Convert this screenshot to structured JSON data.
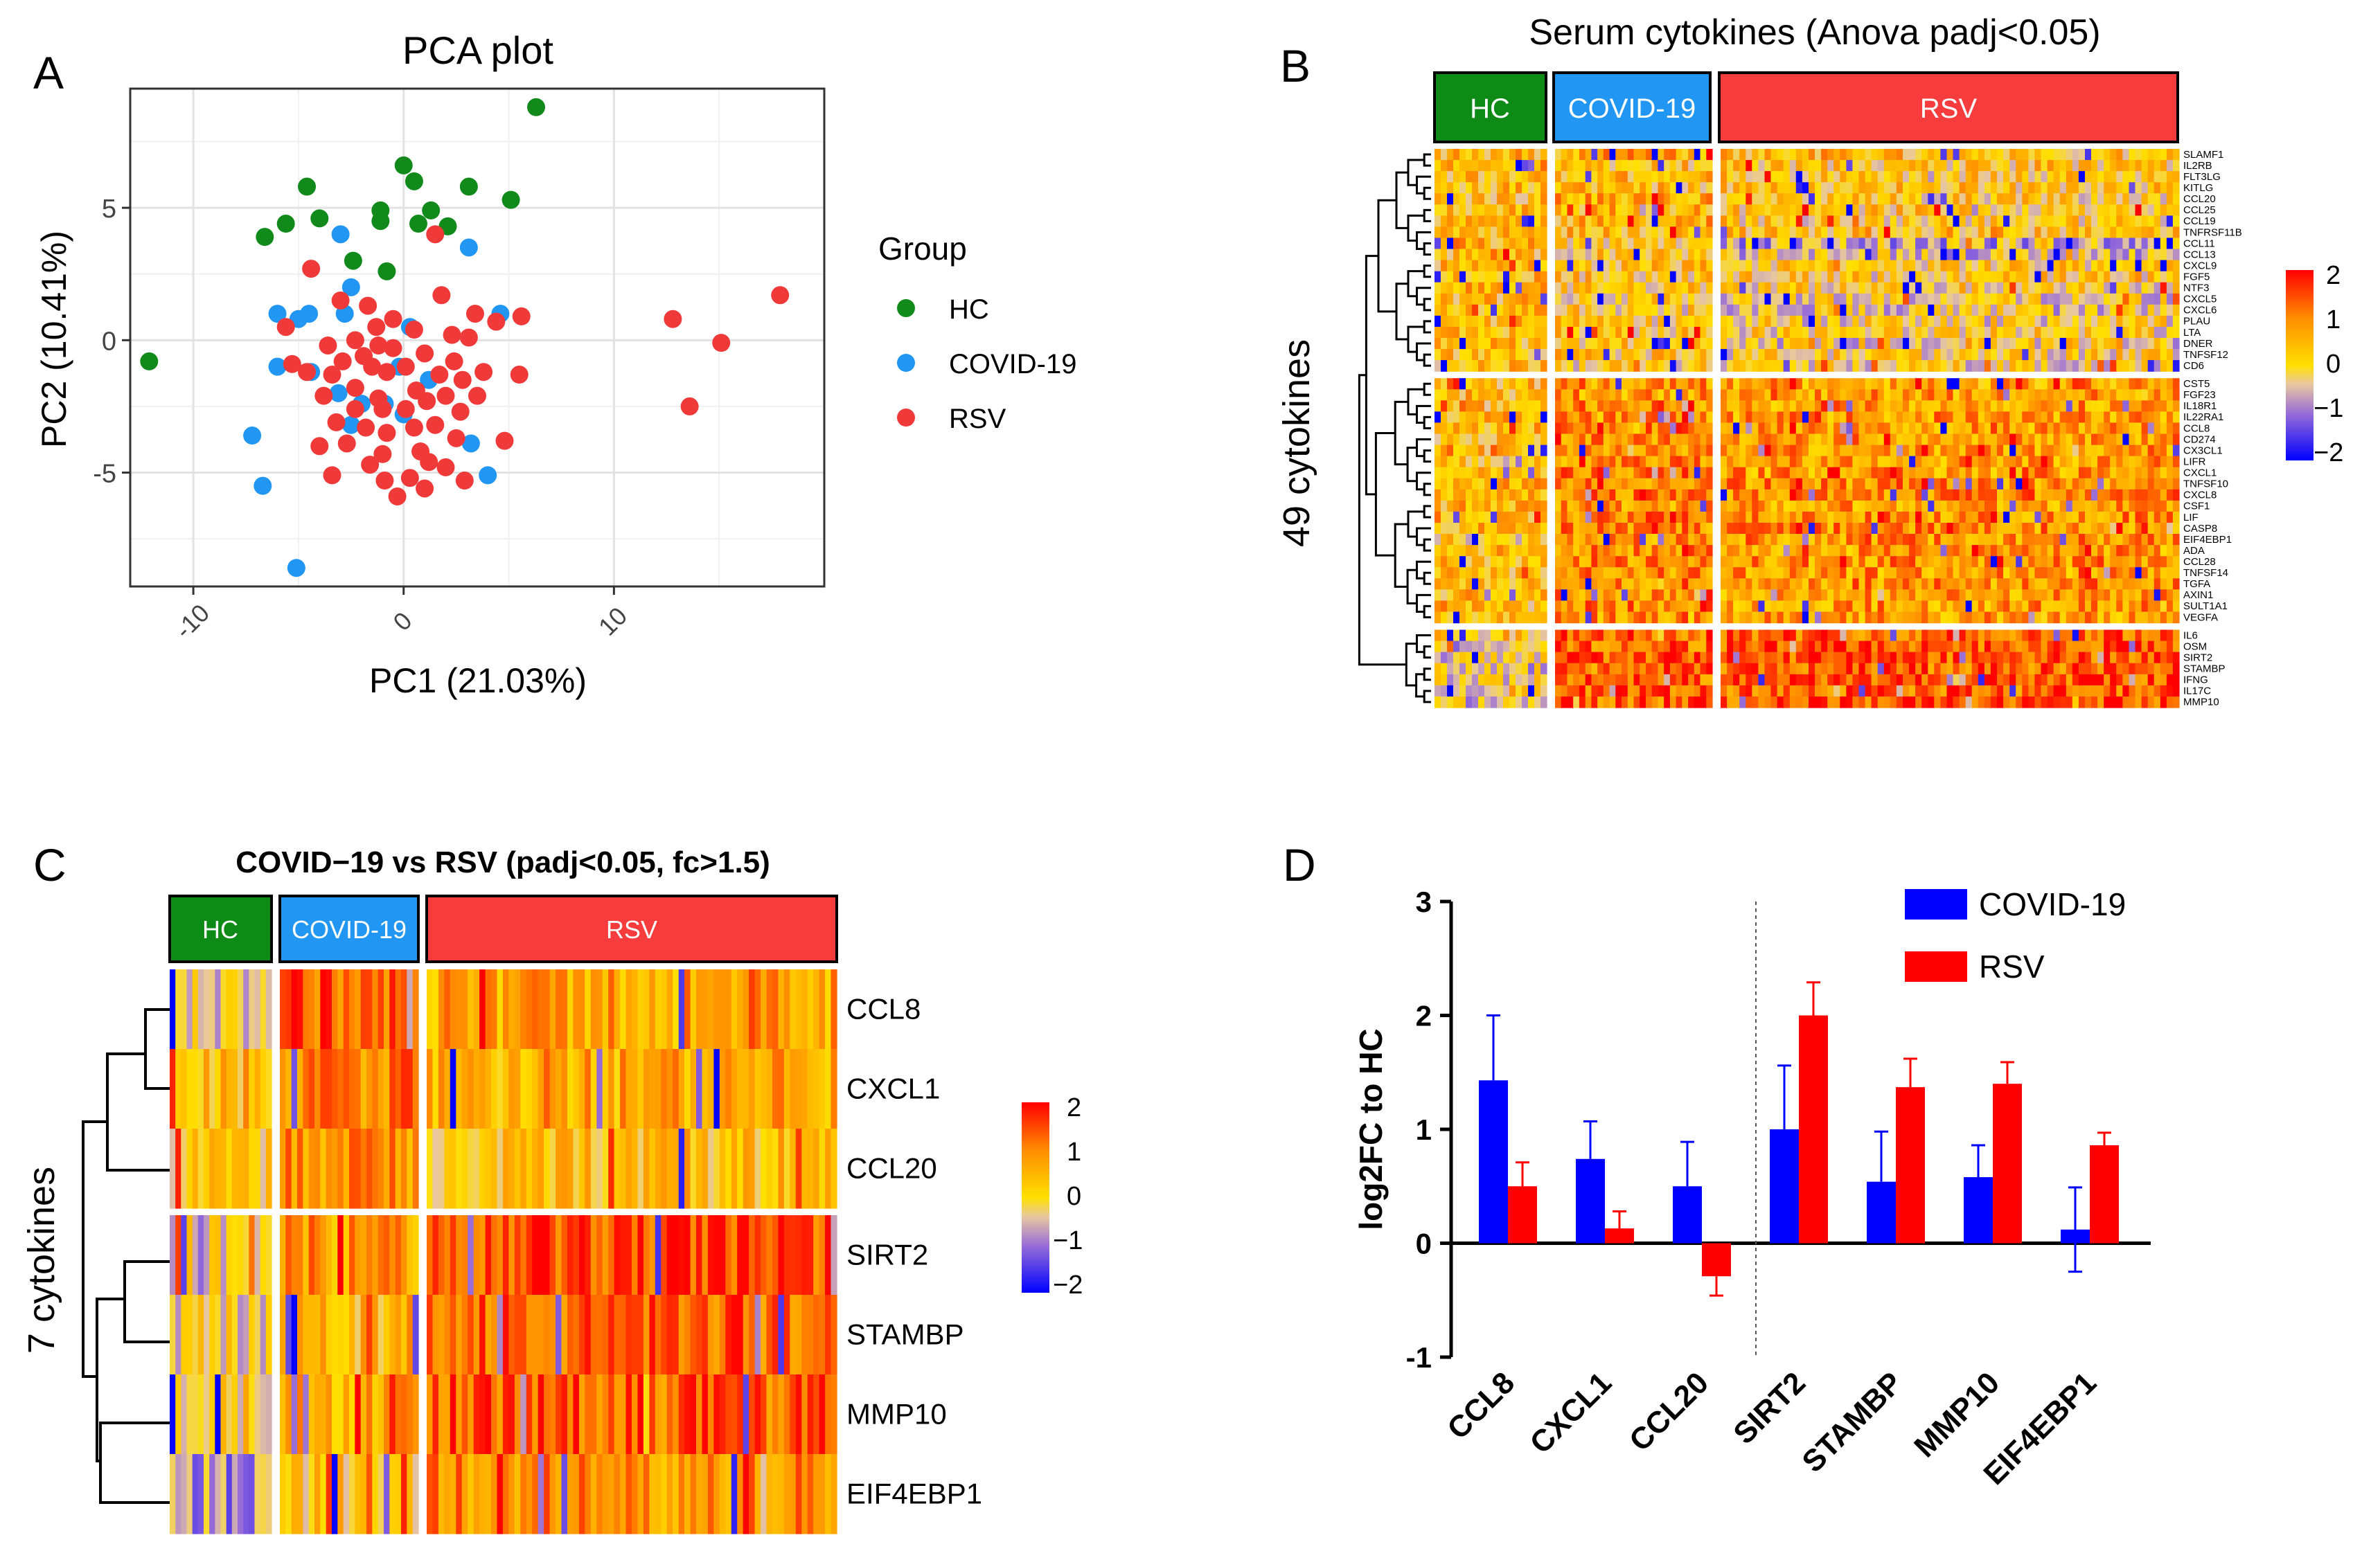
{
  "panels": {
    "A": {
      "letter": "A",
      "title": "PCA plot",
      "xlabel": "PC1 (21.03%)",
      "ylabel": "PC2 (10.41%)",
      "legend_title": "Group",
      "groups": [
        {
          "name": "HC",
          "color": "#118a1b"
        },
        {
          "name": "COVID-19",
          "color": "#2196f3"
        },
        {
          "name": "RSV",
          "color": "#f03a3a"
        }
      ]
    },
    "B": {
      "letter": "B",
      "title": "Serum cytokines (Anova padj<0.05)",
      "side_label": "49 cytokines",
      "group_bars": [
        {
          "label": "HC",
          "color": "#0e8a17"
        },
        {
          "label": "COVID-19",
          "color": "#2196f3"
        },
        {
          "label": "RSV",
          "color": "#f63c3c"
        }
      ],
      "row_labels": [
        "SLAMF1",
        "IL2RB",
        "FLT3LG",
        "KITLG",
        "CCL20",
        "CCL25",
        "CCL19",
        "TNFRSF11B",
        "CCL11",
        "CCL13",
        "CXCL9",
        "FGF5",
        "NTF3",
        "CXCL5",
        "CXCL6",
        "PLAU",
        "LTA",
        "DNER",
        "TNFSF12",
        "CD6",
        "CST5",
        "FGF23",
        "IL18R1",
        "IL22RA1",
        "CCL8",
        "CD274",
        "CX3CL1",
        "LIFR",
        "CXCL1",
        "TNFSF10",
        "CXCL8",
        "CSF1",
        "LIF",
        "CASP8",
        "EIF4EBP1",
        "ADA",
        "CCL28",
        "TNFSF14",
        "TGFA",
        "AXIN1",
        "SULT1A1",
        "VEGFA",
        "IL6",
        "OSM",
        "SIRT2",
        "STAMBP",
        "IFNG",
        "IL17C",
        "MMP10"
      ],
      "colorbar_ticks": [
        "2",
        "1",
        "0",
        "−1",
        "−2"
      ]
    },
    "C": {
      "letter": "C",
      "title": "COVID−19 vs RSV (padj<0.05, fc>1.5)",
      "side_label": "7 cytokines",
      "group_bars": [
        {
          "label": "HC",
          "color": "#0e8a17"
        },
        {
          "label": "COVID-19",
          "color": "#2196f3"
        },
        {
          "label": "RSV",
          "color": "#f63c3c"
        }
      ],
      "row_labels": [
        "CCL8",
        "CXCL1",
        "CCL20",
        "SIRT2",
        "STAMBP",
        "MMP10",
        "EIF4EBP1"
      ],
      "colorbar_ticks": [
        "2",
        "1",
        "0",
        "−1",
        "−2"
      ]
    },
    "D": {
      "letter": "D"
    }
  },
  "chart_data": [
    {
      "panel": "A",
      "type": "scatter",
      "title": "PCA plot",
      "xlabel": "PC1 (21.03%)",
      "ylabel": "PC2 (10.41%)",
      "xlim": [
        -13,
        20
      ],
      "ylim": [
        -9.3,
        9.5
      ],
      "xticks": [
        -10,
        0,
        10
      ],
      "yticks": [
        -5,
        0,
        5
      ],
      "grid": true,
      "legend": "right",
      "series": [
        {
          "name": "HC",
          "color": "#118a1b",
          "points": [
            [
              6.3,
              8.8
            ],
            [
              0,
              6.6
            ],
            [
              0.5,
              6
            ],
            [
              -4.6,
              5.8
            ],
            [
              3.1,
              5.8
            ],
            [
              5.1,
              5.3
            ],
            [
              -1.1,
              4.9
            ],
            [
              1.3,
              4.9
            ],
            [
              -4,
              4.6
            ],
            [
              -5.6,
              4.4
            ],
            [
              -1.1,
              4.5
            ],
            [
              0.7,
              4.4
            ],
            [
              2.1,
              4.3
            ],
            [
              -6.6,
              3.9
            ],
            [
              -0.8,
              2.6
            ],
            [
              -2.4,
              3
            ],
            [
              -12.1,
              -0.8
            ]
          ]
        },
        {
          "name": "COVID-19",
          "color": "#2196f3",
          "points": [
            [
              -3,
              4
            ],
            [
              3.1,
              3.5
            ],
            [
              -2.5,
              2
            ],
            [
              -6,
              1
            ],
            [
              -5,
              0.8
            ],
            [
              -4.5,
              1
            ],
            [
              -2.8,
              1
            ],
            [
              -6,
              -1
            ],
            [
              -4.4,
              -1.2
            ],
            [
              0.3,
              0.5
            ],
            [
              -0.2,
              -1
            ],
            [
              1.2,
              -1.5
            ],
            [
              -3.1,
              -2
            ],
            [
              -0.9,
              -2.4
            ],
            [
              -2,
              -2.4
            ],
            [
              0,
              -2.8
            ],
            [
              4.6,
              1
            ],
            [
              -2.5,
              -3.2
            ],
            [
              -7.2,
              -3.6
            ],
            [
              3.2,
              -3.9
            ],
            [
              4,
              -5.1
            ],
            [
              -6.7,
              -5.5
            ],
            [
              -5.1,
              -8.6
            ]
          ]
        },
        {
          "name": "RSV",
          "color": "#f03a3a",
          "points": [
            [
              1.5,
              4
            ],
            [
              -4.4,
              2.7
            ],
            [
              1.8,
              1.7
            ],
            [
              -3,
              1.5
            ],
            [
              -1.7,
              1.3
            ],
            [
              3.4,
              1
            ],
            [
              5.6,
              0.9
            ],
            [
              4.4,
              0.7
            ],
            [
              -0.5,
              0.8
            ],
            [
              -1.3,
              0.5
            ],
            [
              0.5,
              0.4
            ],
            [
              2.3,
              0.2
            ],
            [
              -2.3,
              0
            ],
            [
              -3.6,
              -0.2
            ],
            [
              3.1,
              0.1
            ],
            [
              -0.5,
              -0.3
            ],
            [
              1,
              -0.5
            ],
            [
              -1.9,
              -0.6
            ],
            [
              -2.9,
              -0.8
            ],
            [
              2.4,
              -0.8
            ],
            [
              -5.3,
              -0.9
            ],
            [
              0.1,
              -1
            ],
            [
              -1.5,
              -1
            ],
            [
              -0.8,
              -1.2
            ],
            [
              -3.4,
              -1.3
            ],
            [
              1.7,
              -1.3
            ],
            [
              2.8,
              -1.5
            ],
            [
              3.8,
              -1.2
            ],
            [
              -2.3,
              -1.8
            ],
            [
              -4.6,
              -1.2
            ],
            [
              0.6,
              -1.9
            ],
            [
              5.5,
              -1.3
            ],
            [
              -3.8,
              -2.1
            ],
            [
              -1.2,
              -2.2
            ],
            [
              1.1,
              -2.3
            ],
            [
              2,
              -2.1
            ],
            [
              3.5,
              -2.1
            ],
            [
              -2.3,
              -2.6
            ],
            [
              -1,
              -2.6
            ],
            [
              0.1,
              -2.6
            ],
            [
              2.7,
              -2.7
            ],
            [
              -3.2,
              -3.1
            ],
            [
              -1.8,
              -3.3
            ],
            [
              -0.8,
              -3.5
            ],
            [
              0.5,
              -3.3
            ],
            [
              1.5,
              -3.2
            ],
            [
              -2.7,
              -3.9
            ],
            [
              2.5,
              -3.7
            ],
            [
              -4,
              -4
            ],
            [
              -1,
              -4.3
            ],
            [
              0.8,
              -4.2
            ],
            [
              4.8,
              -3.8
            ],
            [
              -1.6,
              -4.7
            ],
            [
              1.2,
              -4.6
            ],
            [
              2,
              -4.8
            ],
            [
              -3.4,
              -5.1
            ],
            [
              0.3,
              -5.2
            ],
            [
              -0.9,
              -5.3
            ],
            [
              2.9,
              -5.3
            ],
            [
              -0.3,
              -5.9
            ],
            [
              1,
              -5.6
            ],
            [
              17.9,
              1.7
            ],
            [
              12.8,
              0.8
            ],
            [
              15.1,
              -0.1
            ],
            [
              13.6,
              -2.5
            ],
            [
              -5.6,
              0.5
            ],
            [
              -1.2,
              -0.2
            ]
          ]
        }
      ]
    },
    {
      "panel": "B",
      "type": "heatmap",
      "title": "Serum cytokines (Anova padj<0.05)",
      "ylabel": "49 cytokines",
      "colorbar_range": [
        -2,
        2
      ],
      "column_groups": [
        {
          "name": "HC",
          "n_cols": 18
        },
        {
          "name": "COVID-19",
          "n_cols": 26
        },
        {
          "name": "RSV",
          "n_cols": 73
        }
      ],
      "row_clusters": [
        20,
        22,
        7
      ],
      "rows": [
        "SLAMF1",
        "IL2RB",
        "FLT3LG",
        "KITLG",
        "CCL20",
        "CCL25",
        "CCL19",
        "TNFRSF11B",
        "CCL11",
        "CCL13",
        "CXCL9",
        "FGF5",
        "NTF3",
        "CXCL5",
        "CXCL6",
        "PLAU",
        "LTA",
        "DNER",
        "TNFSF12",
        "CD6",
        "CST5",
        "FGF23",
        "IL18R1",
        "IL22RA1",
        "CCL8",
        "CD274",
        "CX3CL1",
        "LIFR",
        "CXCL1",
        "TNFSF10",
        "CXCL8",
        "CSF1",
        "LIF",
        "CASP8",
        "EIF4EBP1",
        "ADA",
        "CCL28",
        "TNFSF14",
        "TGFA",
        "AXIN1",
        "SULT1A1",
        "VEGFA",
        "IL6",
        "OSM",
        "SIRT2",
        "STAMBP",
        "IFNG",
        "IL17C",
        "MMP10"
      ],
      "group_means": [
        [
          0.4,
          0.6,
          0.3
        ],
        [
          0.5,
          0.3,
          0.2
        ],
        [
          0.3,
          0.4,
          0.2
        ],
        [
          0.4,
          0.3,
          0.2
        ],
        [
          0.3,
          0.6,
          0.1
        ],
        [
          0.4,
          0.5,
          0.2
        ],
        [
          0.3,
          0.4,
          0.1
        ],
        [
          0.5,
          0.4,
          0.3
        ],
        [
          0.4,
          0.2,
          -0.6
        ],
        [
          0.3,
          0.1,
          -0.4
        ],
        [
          0.3,
          0.3,
          0.1
        ],
        [
          0.5,
          0.2,
          0.1
        ],
        [
          0.4,
          0.1,
          0
        ],
        [
          0.4,
          0.1,
          -0.2
        ],
        [
          0.3,
          0,
          -0.3
        ],
        [
          0.4,
          0.1,
          -0.1
        ],
        [
          0.4,
          0.2,
          0
        ],
        [
          0.3,
          0.1,
          -0.2
        ],
        [
          0.4,
          0.2,
          0
        ],
        [
          0.3,
          0,
          -0.1
        ],
        [
          0.3,
          0.9,
          0.7
        ],
        [
          0.4,
          0.8,
          0.7
        ],
        [
          0.3,
          1,
          0.8
        ],
        [
          0.4,
          0.8,
          0.8
        ],
        [
          0.3,
          1.2,
          0.7
        ],
        [
          0.4,
          0.9,
          0.9
        ],
        [
          0.3,
          1,
          0.8
        ],
        [
          0.4,
          0.9,
          0.8
        ],
        [
          0.3,
          1.1,
          0.8
        ],
        [
          0.4,
          1,
          0.9
        ],
        [
          0.3,
          1.1,
          1
        ],
        [
          0.4,
          0.9,
          0.8
        ],
        [
          0.3,
          1,
          0.9
        ],
        [
          0.4,
          1,
          0.9
        ],
        [
          0,
          0.8,
          0.9
        ],
        [
          0.4,
          0.9,
          0.8
        ],
        [
          0.3,
          0.9,
          0.9
        ],
        [
          0.4,
          0.9,
          0.8
        ],
        [
          0.3,
          1,
          0.9
        ],
        [
          0.4,
          0.9,
          0.8
        ],
        [
          0.3,
          1,
          0.8
        ],
        [
          0.4,
          0.8,
          0.7
        ],
        [
          0.2,
          1.3,
          1.3
        ],
        [
          -0.4,
          1.2,
          1.4
        ],
        [
          -0.3,
          1.4,
          1.4
        ],
        [
          -0.3,
          1.2,
          1.3
        ],
        [
          -0.2,
          1.3,
          1.4
        ],
        [
          -0.2,
          1.2,
          1.3
        ],
        [
          -0.3,
          1.3,
          1.4
        ]
      ]
    },
    {
      "panel": "C",
      "type": "heatmap",
      "title": "COVID−19 vs RSV (padj<0.05, fc>1.5)",
      "ylabel": "7 cytokines",
      "colorbar_range": [
        -2,
        2
      ],
      "column_groups": [
        {
          "name": "HC",
          "n_cols": 18
        },
        {
          "name": "COVID-19",
          "n_cols": 24
        },
        {
          "name": "RSV",
          "n_cols": 70
        }
      ],
      "rows": [
        "CCL8",
        "CXCL1",
        "CCL20",
        "SIRT2",
        "STAMBP",
        "MMP10",
        "EIF4EBP1"
      ],
      "row_clusters": [
        3,
        4
      ],
      "group_means": [
        [
          -0.2,
          1.4,
          0.7
        ],
        [
          0.4,
          1.1,
          0.6
        ],
        [
          0,
          1,
          0.3
        ],
        [
          -0.2,
          0.8,
          1.5
        ],
        [
          -0.2,
          0.4,
          1.3
        ],
        [
          0,
          0.6,
          1.3
        ],
        [
          -0.8,
          0.2,
          0.9
        ]
      ]
    },
    {
      "panel": "D",
      "type": "bar",
      "ylabel": "log2FC to HC",
      "ylim": [
        -1,
        3
      ],
      "yticks": [
        -1,
        0,
        1,
        2,
        3
      ],
      "legend": "top-right",
      "categories": [
        "CCL8",
        "CXCL1",
        "CCL20",
        "SIRT2",
        "STAMBP",
        "MMP10",
        "EIF4EBP1"
      ],
      "separator_after_index": 2,
      "series": [
        {
          "name": "COVID-19",
          "color": "#0000ff",
          "values": [
            1.43,
            0.74,
            0.5,
            1.0,
            0.54,
            0.58,
            0.12
          ],
          "errors": [
            0.57,
            0.33,
            0.39,
            0.56,
            0.44,
            0.28,
            0.37
          ],
          "error_dir": [
            1,
            1,
            1,
            1,
            1,
            1,
            0
          ]
        },
        {
          "name": "RSV",
          "color": "#ff0000",
          "values": [
            0.5,
            0.13,
            -0.29,
            2.0,
            1.37,
            1.4,
            0.86
          ],
          "errors": [
            0.21,
            0.15,
            0.17,
            0.29,
            0.25,
            0.19,
            0.11
          ],
          "error_dir": [
            1,
            1,
            -1,
            1,
            1,
            1,
            1
          ]
        }
      ]
    }
  ]
}
